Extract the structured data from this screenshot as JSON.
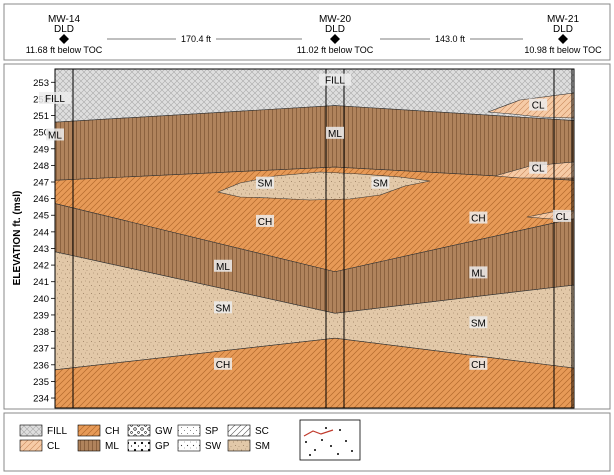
{
  "wells": [
    {
      "id": "MW-14",
      "method": "DLD",
      "depth_label": "11.68 ft below TOC"
    },
    {
      "id": "MW-20",
      "method": "DLD",
      "depth_label": "11.02 ft below TOC"
    },
    {
      "id": "MW-21",
      "method": "DLD",
      "depth_label": "10.98 ft below TOC"
    }
  ],
  "distances": [
    "170.4 ft",
    "143.0 ft"
  ],
  "axis": {
    "ylabel": "ELEVATION ft. (msl)",
    "ymin": 233.4,
    "ymax": 253.8,
    "ticks": [
      253,
      252,
      251,
      250,
      249,
      248,
      247,
      246,
      245,
      244,
      243,
      242,
      241,
      240,
      239,
      238,
      237,
      236,
      235,
      234
    ]
  },
  "units": [
    {
      "code": "FILL",
      "label": "FILL",
      "pattern": "fill-pat"
    },
    {
      "code": "ML",
      "label": "ML",
      "pattern": "ml-pat"
    },
    {
      "code": "CL",
      "label": "CL",
      "pattern": "cl-pat"
    },
    {
      "code": "SM",
      "label": "SM",
      "pattern": "sm-pat"
    },
    {
      "code": "CH",
      "label": "CH",
      "pattern": "ch-pat"
    }
  ],
  "layer_labels": [
    {
      "text": "FILL",
      "x": 0,
      "y": 252.0
    },
    {
      "text": "FILL",
      "x": 1,
      "y": 253.1
    },
    {
      "text": "ML",
      "x": 0,
      "y": 249.8
    },
    {
      "text": "ML",
      "x": 1,
      "y": 249.9
    },
    {
      "text": "CL",
      "x": 1.85,
      "y": 251.6
    },
    {
      "text": "CL",
      "x": 1.85,
      "y": 247.8
    },
    {
      "text": "CL",
      "x": 1.95,
      "y": 244.9
    },
    {
      "text": "SM",
      "x": 0.75,
      "y": 246.9
    },
    {
      "text": "SM",
      "x": 1.19,
      "y": 246.9
    },
    {
      "text": "CH",
      "x": 0.75,
      "y": 244.6
    },
    {
      "text": "CH",
      "x": 1.6,
      "y": 244.8
    },
    {
      "text": "ML",
      "x": 0.6,
      "y": 241.9
    },
    {
      "text": "ML",
      "x": 1.6,
      "y": 241.5
    },
    {
      "text": "SM",
      "x": 0.6,
      "y": 239.4
    },
    {
      "text": "SM",
      "x": 1.6,
      "y": 238.5
    },
    {
      "text": "CH",
      "x": 0.6,
      "y": 236.0
    },
    {
      "text": "CH",
      "x": 1.6,
      "y": 236.0
    }
  ],
  "legend": {
    "items": [
      {
        "label": "FILL",
        "pattern": "fill-pat"
      },
      {
        "label": "CL",
        "pattern": "cl-pat"
      },
      {
        "label": "CH",
        "pattern": "ch-pat"
      },
      {
        "label": "ML",
        "pattern": "ml-pat"
      },
      {
        "label": "GW",
        "pattern": "gw-pat"
      },
      {
        "label": "GP",
        "pattern": "gp-pat"
      },
      {
        "label": "SP",
        "pattern": "sp-pat"
      },
      {
        "label": "SW",
        "pattern": "sw-pat"
      },
      {
        "label": "SC",
        "pattern": "sc-pat"
      },
      {
        "label": "SM",
        "pattern": "sm-pat"
      }
    ]
  },
  "colors": {
    "fill": "#d9d9d9",
    "ml": "#b0835c",
    "cl": "#f4c39b",
    "sm": "#e2c8a8",
    "ch": "#e79a57",
    "line": "#222222"
  }
}
